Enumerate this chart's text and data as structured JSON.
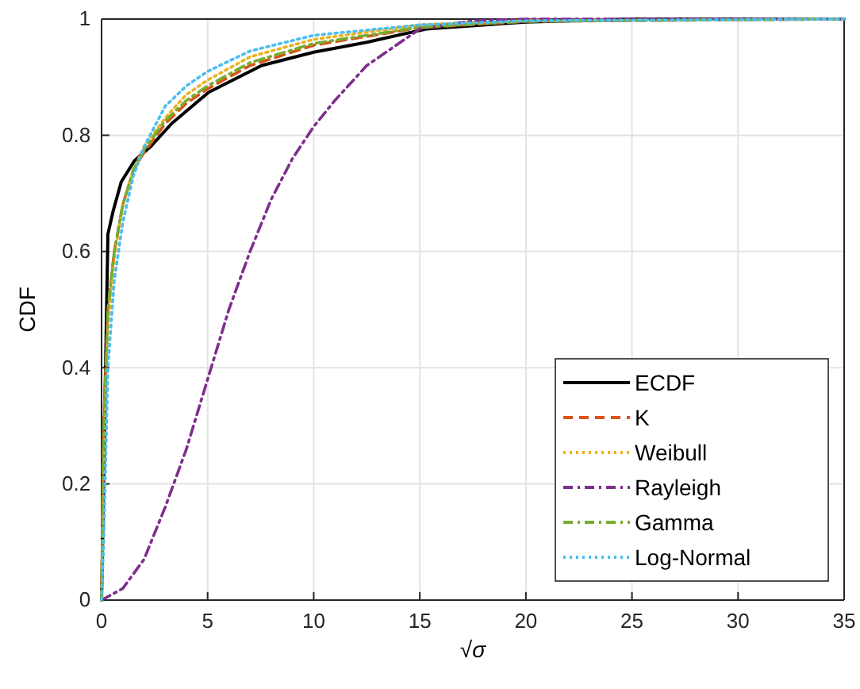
{
  "chart_data": {
    "type": "line",
    "xlabel": "√σ",
    "ylabel": "CDF",
    "xlim": [
      0,
      35
    ],
    "ylim": [
      0,
      1
    ],
    "xticks": [
      0,
      5,
      10,
      15,
      20,
      25,
      30,
      35
    ],
    "yticks": [
      0,
      0.2,
      0.4,
      0.6,
      0.8,
      1
    ],
    "grid": true,
    "legend": "bottom right",
    "series": [
      {
        "name": "ECDF",
        "color": "#000000",
        "line_style": "solid",
        "x": [
          0,
          0.1,
          0.18,
          0.3,
          0.55,
          0.93,
          1.55,
          2.3,
          3.3,
          5.05,
          7.55,
          10,
          12.5,
          15.3,
          20,
          25,
          35
        ],
        "values": [
          0,
          0.2,
          0.38,
          0.63,
          0.67,
          0.72,
          0.756,
          0.78,
          0.82,
          0.874,
          0.92,
          0.943,
          0.96,
          0.983,
          0.995,
          1,
          1
        ]
      },
      {
        "name": "K",
        "color": "#d95319",
        "line_style": "dashed",
        "x": [
          0,
          0.1,
          0.3,
          0.6,
          1,
          1.5,
          2,
          3,
          4,
          5,
          7,
          10,
          15,
          20,
          35
        ],
        "values": [
          0,
          0.3,
          0.5,
          0.6,
          0.68,
          0.74,
          0.77,
          0.82,
          0.855,
          0.88,
          0.92,
          0.955,
          0.985,
          0.996,
          1
        ]
      },
      {
        "name": "Weibull",
        "color": "#edb120",
        "line_style": "dotted",
        "x": [
          0,
          0.1,
          0.3,
          0.6,
          1,
          1.5,
          2,
          3,
          4,
          5,
          7,
          10,
          15,
          20,
          35
        ],
        "values": [
          0,
          0.25,
          0.47,
          0.59,
          0.68,
          0.74,
          0.78,
          0.83,
          0.87,
          0.895,
          0.935,
          0.965,
          0.99,
          0.998,
          1
        ]
      },
      {
        "name": "Rayleigh",
        "color": "#7e2f8e",
        "line_style": "dashdot",
        "x": [
          0,
          1,
          2,
          3,
          4,
          5,
          6,
          7,
          8,
          9,
          10,
          11,
          12.5,
          15,
          17.5,
          20,
          35
        ],
        "values": [
          0,
          0.02,
          0.07,
          0.16,
          0.26,
          0.38,
          0.5,
          0.6,
          0.69,
          0.76,
          0.815,
          0.86,
          0.92,
          0.983,
          0.997,
          1,
          1
        ]
      },
      {
        "name": "Gamma",
        "color": "#77ac30",
        "line_style": "dashdot",
        "x": [
          0,
          0.1,
          0.3,
          0.6,
          1,
          1.5,
          2,
          3,
          4,
          5,
          7,
          10,
          15,
          20,
          35
        ],
        "values": [
          0,
          0.3,
          0.5,
          0.6,
          0.68,
          0.74,
          0.775,
          0.825,
          0.86,
          0.885,
          0.925,
          0.958,
          0.986,
          0.996,
          1
        ]
      },
      {
        "name": "Log-Normal",
        "color": "#4dbeee",
        "line_style": "dotted",
        "x": [
          0,
          0.1,
          0.3,
          0.6,
          1,
          1.5,
          2,
          3,
          4,
          5,
          7,
          10,
          15,
          20,
          35
        ],
        "values": [
          0,
          0.1,
          0.4,
          0.55,
          0.65,
          0.73,
          0.78,
          0.85,
          0.885,
          0.91,
          0.945,
          0.972,
          0.99,
          0.997,
          1
        ]
      }
    ]
  }
}
